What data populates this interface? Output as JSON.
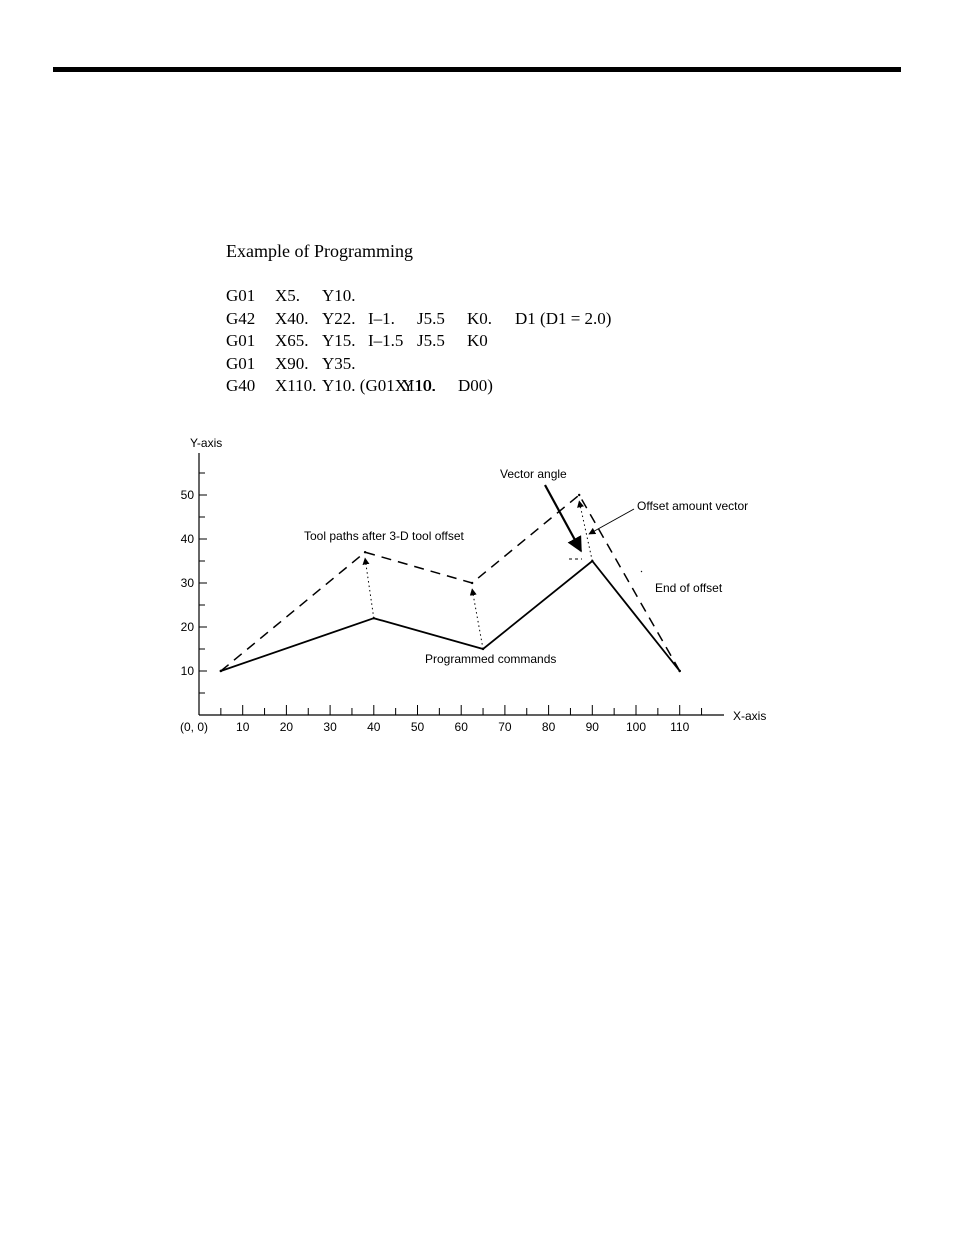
{
  "section_title": "Example of Programming",
  "program_lines": [
    [
      "G01",
      "X5.",
      "Y10."
    ],
    [
      "G42",
      "X40.",
      "Y22.",
      "I–1.",
      "J5.5",
      "K0.",
      "D1 (D1 = 2.0)"
    ],
    [
      "G01",
      "X65.",
      "Y15.",
      "I–1.5",
      "J5.5",
      "K0"
    ],
    [
      "G01",
      "X90.",
      "Y35."
    ],
    [
      "G40",
      "X110.",
      "Y10. (G01X110.",
      "Y10.",
      "D00)"
    ]
  ],
  "chart_data": {
    "type": "line",
    "xlabel": "X-axis",
    "ylabel": "Y-axis",
    "origin_label": "(0, 0)",
    "x_ticks": [
      10,
      20,
      30,
      40,
      50,
      60,
      70,
      80,
      90,
      100,
      110
    ],
    "y_ticks": [
      10,
      20,
      30,
      40,
      50
    ],
    "xlim": [
      0,
      120
    ],
    "ylim": [
      0,
      60
    ],
    "series": [
      {
        "name": "Programmed commands",
        "style": "solid",
        "x": [
          5,
          40,
          65,
          90,
          110
        ],
        "y": [
          10,
          22,
          15,
          35,
          10
        ]
      },
      {
        "name": "Tool paths after 3-D tool offset",
        "style": "dashed",
        "x": [
          5,
          38,
          62.5,
          87,
          110
        ],
        "y": [
          10,
          37,
          30,
          50,
          10
        ]
      }
    ],
    "annotations": [
      "Vector angle",
      "Offset amount vector",
      "End of offset"
    ]
  }
}
